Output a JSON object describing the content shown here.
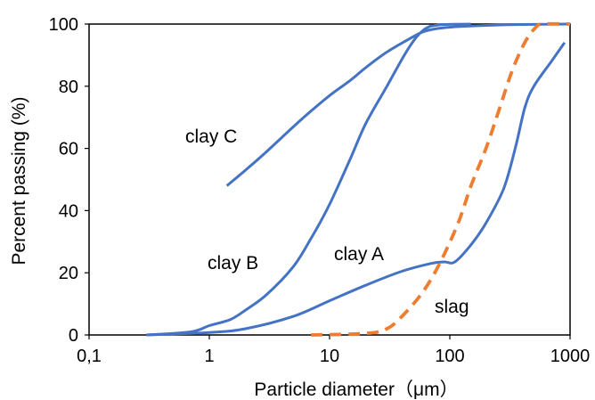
{
  "chart_data": {
    "type": "line",
    "xlabel": "Particle diameter（μm）",
    "ylabel": "Percent passing (%)",
    "xscale": "log",
    "xlim": [
      0.1,
      1000
    ],
    "ylim": [
      0,
      100
    ],
    "x_ticks": [
      0.1,
      1,
      10,
      100,
      1000
    ],
    "x_tick_labels": [
      "0,1",
      "1",
      "10",
      "100",
      "1000"
    ],
    "y_ticks": [
      0,
      20,
      40,
      60,
      80,
      100
    ],
    "y_tick_labels": [
      "0",
      "20",
      "40",
      "60",
      "80",
      "100"
    ],
    "grid": false,
    "series": [
      {
        "name": "clay A",
        "color": "#4472C4",
        "style": "solid",
        "points": [
          [
            0.3,
            0
          ],
          [
            1,
            0.8
          ],
          [
            2,
            2
          ],
          [
            5,
            6
          ],
          [
            10,
            11
          ],
          [
            20,
            16
          ],
          [
            40,
            20.5
          ],
          [
            70,
            23
          ],
          [
            90,
            23.5
          ],
          [
            110,
            23.5
          ],
          [
            150,
            29
          ],
          [
            200,
            36
          ],
          [
            280,
            47
          ],
          [
            350,
            60
          ],
          [
            420,
            73
          ],
          [
            500,
            80
          ],
          [
            700,
            88
          ],
          [
            900,
            94
          ]
        ]
      },
      {
        "name": "clay B",
        "color": "#4472C4",
        "style": "solid",
        "points": [
          [
            0.3,
            0
          ],
          [
            0.7,
            1
          ],
          [
            1,
            3
          ],
          [
            1.5,
            5
          ],
          [
            2,
            8
          ],
          [
            3,
            13
          ],
          [
            5,
            22
          ],
          [
            7,
            31
          ],
          [
            10,
            42
          ],
          [
            15,
            57
          ],
          [
            20,
            68
          ],
          [
            30,
            80
          ],
          [
            45,
            92
          ],
          [
            60,
            98
          ],
          [
            80,
            99.7
          ],
          [
            150,
            100
          ]
        ]
      },
      {
        "name": "clay C",
        "color": "#4472C4",
        "style": "solid",
        "points": [
          [
            1.4,
            48
          ],
          [
            2,
            53
          ],
          [
            3,
            59
          ],
          [
            5,
            67
          ],
          [
            7,
            72
          ],
          [
            10,
            77
          ],
          [
            15,
            82
          ],
          [
            20,
            86
          ],
          [
            30,
            91
          ],
          [
            45,
            95
          ],
          [
            60,
            97.5
          ],
          [
            80,
            98.6
          ],
          [
            120,
            99.2
          ],
          [
            300,
            99.8
          ],
          [
            1000,
            100
          ]
        ]
      },
      {
        "name": "slag",
        "color": "#ED7D31",
        "style": "dashed",
        "points": [
          [
            7,
            0
          ],
          [
            20,
            0.5
          ],
          [
            30,
            2
          ],
          [
            40,
            6
          ],
          [
            55,
            12
          ],
          [
            70,
            18
          ],
          [
            90,
            26
          ],
          [
            120,
            37
          ],
          [
            150,
            48
          ],
          [
            200,
            60
          ],
          [
            260,
            73
          ],
          [
            330,
            85
          ],
          [
            420,
            94
          ],
          [
            520,
            99
          ],
          [
            600,
            100
          ],
          [
            1000,
            100
          ]
        ]
      }
    ],
    "annotations": [
      {
        "text": "clay C",
        "series": "clay C"
      },
      {
        "text": "clay B",
        "series": "clay B"
      },
      {
        "text": "clay A",
        "series": "clay A"
      },
      {
        "text": "slag",
        "series": "slag"
      }
    ]
  }
}
